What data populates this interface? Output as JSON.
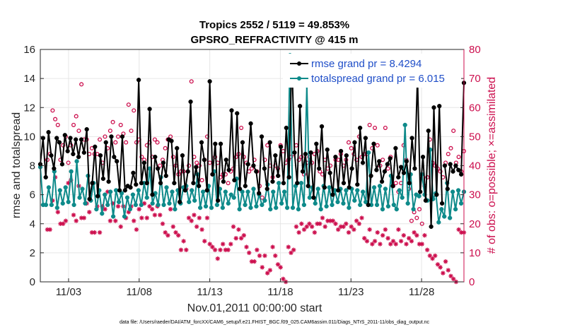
{
  "chart_data": {
    "type": "line",
    "title": "Tropics 2552 / 5119 = 49.853%",
    "subtitle": "GPSRO_REFRACTIVITY @ 415 m",
    "xlabel": "Nov.01,2011 00:00:00 start",
    "ylabel_left": "rmse and totalspread",
    "ylabel_right": "# of obs: o=possible; ×=assimilated",
    "footer": "data file: /Users/raeder/DAI/ATM_forcXX/CAM6_setup/f.e21.FHIST_BGC.f09_025.CAM6assim.011/Diags_NTrS_2011-11/obs_diag_output.nc",
    "x_range_days": [
      1.0,
      31.0
    ],
    "x_ticks": [
      {
        "day": 3,
        "label": "11/03"
      },
      {
        "day": 8,
        "label": "11/08"
      },
      {
        "day": 13,
        "label": "11/13"
      },
      {
        "day": 18,
        "label": "11/18"
      },
      {
        "day": 23,
        "label": "11/23"
      },
      {
        "day": 28,
        "label": "11/28"
      }
    ],
    "ylim_left": [
      0,
      16
    ],
    "yticks_left": [
      "0",
      "2",
      "4",
      "6",
      "8",
      "10",
      "12",
      "14",
      "16"
    ],
    "ylim_right": [
      0,
      80
    ],
    "yticks_right": [
      "0",
      "10",
      "20",
      "30",
      "40",
      "50",
      "60",
      "70",
      "80"
    ],
    "grid": true,
    "legend_position": "top-right",
    "colors": {
      "rmse": "#000000",
      "spread": "#0e8a8a",
      "counts": "#cc0e4d"
    },
    "series": [
      {
        "name": "rmse grand pr = 8.4294",
        "axis": "left",
        "values": [
          8.1,
          9.9,
          7.2,
          10.3,
          8.7,
          7.8,
          9.9,
          9.6,
          8.1,
          10.1,
          9.0,
          9.9,
          8.8,
          9.8,
          8.6,
          9.8,
          8.9,
          10.5,
          5.7,
          6.8,
          9.3,
          5.9,
          8.7,
          7.1,
          9.6,
          6.9,
          10.0,
          8.6,
          8.3,
          6.3,
          10.0,
          6.3,
          6.6,
          6.5,
          7.5,
          6.7,
          13.9,
          6.8,
          8.2,
          6.8,
          11.9,
          6.0,
          8.6,
          7.8,
          6.8,
          8.2,
          7.3,
          9.8,
          9.7,
          6.8,
          9.2,
          5.5,
          8.7,
          6.3,
          7.6,
          12.4,
          6.8,
          7.9,
          6.6,
          9.6,
          8.4,
          6.3,
          13.8,
          7.4,
          9.5,
          5.6,
          9.5,
          6.9,
          8.4,
          7.7,
          11.8,
          7.0,
          11.6,
          6.4,
          9.6,
          6.6,
          8.1,
          10.9,
          8.0,
          7.6,
          6.1,
          10.0,
          7.8,
          6.4,
          9.6,
          6.9,
          8.7,
          7.3,
          9.3,
          6.8,
          10.6,
          7.2,
          15.5,
          8.9,
          6.8,
          12.1,
          7.6,
          8.8,
          6.6,
          8.9,
          5.8,
          9.5,
          7.8,
          10.7,
          6.5,
          9.1,
          7.5,
          6.0,
          8.6,
          6.3,
          9.0,
          6.8,
          8.7,
          6.5,
          7.8,
          9.6,
          6.7,
          10.6,
          8.2,
          9.9,
          5.3,
          7.3,
          9.5,
          7.7,
          8.3,
          6.9,
          7.6,
          8.1,
          8.5,
          6.6,
          9.2,
          7.2,
          7.9,
          7.5,
          8.3,
          6.8,
          9.9,
          7.8,
          14.1,
          6.2,
          8.6,
          5.6,
          10.4,
          3.8,
          12.0,
          6.0,
          12.1,
          5.4,
          8.0,
          6.4,
          8.1,
          7.6,
          8.0,
          7.7,
          7.4,
          13.7
        ],
        "gaps_after_index": [
          147
        ]
      },
      {
        "name": "totalspread grand pr = 6.015",
        "axis": "left",
        "values": [
          7.9,
          5.3,
          5.3,
          6.5,
          5.3,
          7.6,
          5.1,
          6.3,
          5.4,
          6.5,
          5.5,
          7.6,
          5.3,
          8.3,
          5.8,
          6.4,
          5.4,
          7.3,
          5.6,
          6.8,
          5.0,
          6.3,
          4.7,
          6.0,
          5.3,
          6.2,
          4.5,
          6.3,
          5.5,
          6.1,
          4.5,
          5.8,
          5.0,
          6.0,
          5.3,
          6.3,
          5.3,
          6.8,
          5.8,
          7.8,
          5.4,
          6.1,
          5.3,
          7.2,
          5.3,
          6.5,
          5.4,
          6.2,
          5.0,
          6.3,
          5.4,
          6.5,
          6.6,
          5.5,
          6.3,
          5.6,
          7.4,
          5.1,
          6.2,
          5.2,
          6.6,
          5.1,
          7.6,
          5.3,
          6.4,
          5.1,
          6.2,
          5.4,
          6.0,
          5.8,
          7.1,
          5.0,
          6.2,
          5.3,
          6.2,
          5.1,
          6.4,
          5.2,
          6.0,
          5.3,
          5.6,
          6.7,
          5.0,
          6.2,
          5.1,
          6.8,
          5.4,
          6.2,
          5.1,
          15.6,
          5.1,
          6.6,
          5.0,
          6.8,
          5.3,
          13.5,
          5.8,
          6.5,
          5.4,
          6.4,
          5.0,
          6.6,
          5.2,
          6.5,
          5.3,
          6.3,
          5.5,
          6.4,
          5.4,
          6.3,
          5.1,
          6.4,
          5.6,
          6.3,
          5.3,
          6.2,
          5.5,
          8.9,
          5.3,
          6.5,
          5.3,
          6.6,
          5.0,
          6.4,
          5.2,
          7.3,
          5.3,
          5.0,
          6.3,
          5.8,
          10.8,
          5.4,
          7.4,
          5.0,
          6.0,
          5.9,
          7.4,
          6.0,
          5.6,
          9.1,
          5.7,
          6.1,
          4.1,
          5.0,
          4.5,
          6.8,
          4.4,
          6.2,
          5.0,
          6.3,
          5.4,
          6.2
        ],
        "gaps_after_index": [
          138
        ]
      },
      {
        "name": "possible observations (o)",
        "axis": "right",
        "values": [
          42,
          44,
          59,
          56,
          54,
          42,
          47,
          50,
          41,
          47,
          54,
          57,
          52,
          68,
          49,
          49,
          44,
          46,
          44,
          44,
          49,
          41,
          50,
          46,
          52,
          55,
          48,
          50,
          54,
          51,
          48,
          61,
          52,
          59,
          48,
          49,
          43,
          42,
          47,
          48,
          43,
          49,
          48,
          40,
          42,
          46,
          49,
          50,
          43,
          40,
          37,
          38,
          38,
          32,
          40,
          69,
          43,
          41,
          40,
          35,
          42,
          50,
          41,
          37,
          43,
          41,
          36,
          37,
          37,
          34,
          38,
          39,
          43,
          44,
          53,
          43,
          41,
          38,
          39,
          42,
          38,
          33,
          29,
          42,
          47,
          40,
          36,
          40,
          39,
          47,
          45,
          41,
          42,
          43,
          44,
          47,
          42,
          43,
          37,
          41,
          43,
          41,
          44,
          45,
          38,
          37,
          42,
          39,
          40,
          72,
          42,
          42,
          44,
          40,
          42,
          48,
          46,
          44,
          42,
          50,
          43,
          44,
          44,
          54,
          46,
          53,
          47,
          40,
          42,
          53,
          39,
          43,
          33,
          34,
          31,
          34,
          47,
          42,
          32,
          21,
          24,
          22,
          25,
          20,
          33,
          36,
          49,
          41,
          40,
          39,
          38,
          36,
          41,
          44,
          46,
          52,
          41,
          43,
          38,
          45
        ],
        "marker": "o"
      },
      {
        "name": "assimilated observations (×)",
        "axis": "right",
        "values": [
          18,
          18,
          28,
          36,
          24,
          20,
          20,
          21,
          34,
          35,
          23,
          21,
          33,
          22,
          22,
          27,
          24,
          17,
          17,
          26,
          17,
          26,
          25,
          31,
          21,
          27,
          21,
          26,
          19,
          26,
          22,
          24,
          26,
          21,
          18,
          25,
          22,
          27,
          22,
          26,
          25,
          23,
          26,
          23,
          20,
          17,
          16,
          25,
          19,
          17,
          16,
          11,
          14,
          11,
          22,
          21,
          23,
          19,
          22,
          18,
          14,
          22,
          13,
          12,
          11,
          8,
          11,
          13,
          11,
          11,
          13,
          19,
          15,
          18,
          15,
          16,
          12,
          10,
          7,
          7,
          11,
          9,
          5,
          9,
          3,
          4,
          12,
          9,
          6,
          5,
          1,
          0,
          12,
          10,
          11,
          19,
          17,
          20,
          18,
          19,
          20,
          19,
          17,
          20,
          20,
          22,
          19,
          21,
          21,
          21,
          20,
          18,
          19,
          19,
          20,
          17,
          19,
          18,
          21,
          20,
          22,
          15,
          14,
          18,
          13,
          14,
          17,
          13,
          16,
          18,
          15,
          13,
          14,
          13,
          18,
          14,
          16,
          13,
          15,
          14,
          17,
          16,
          13,
          13,
          16,
          11,
          9,
          8,
          9,
          6,
          5,
          3,
          7,
          4,
          2,
          1,
          0,
          18,
          17,
          17
        ],
        "marker": "×"
      }
    ]
  }
}
